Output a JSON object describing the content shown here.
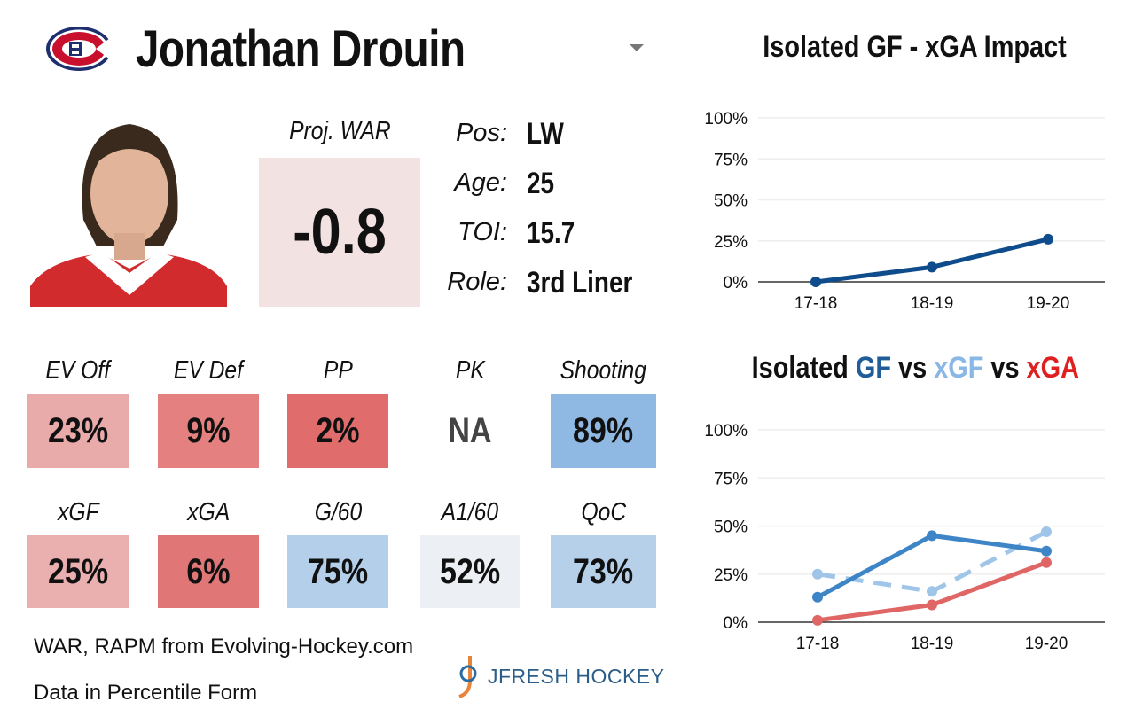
{
  "player": {
    "name": "Jonathan Drouin",
    "team_logo": "canadiens-logo"
  },
  "war": {
    "label": "Proj. WAR",
    "value": "-0.8"
  },
  "info": [
    {
      "label": "Pos:",
      "value": "LW"
    },
    {
      "label": "Age:",
      "value": "25"
    },
    {
      "label": "TOI:",
      "value": "15.7"
    },
    {
      "label": "Role:",
      "value": "3rd Liner"
    }
  ],
  "tiles": [
    {
      "label": "EV Off",
      "value": "23%",
      "color": "#e9aaaa"
    },
    {
      "label": "EV Def",
      "value": "9%",
      "color": "#e48080"
    },
    {
      "label": "PP",
      "value": "2%",
      "color": "#e06c6c"
    },
    {
      "label": "PK",
      "value": "NA",
      "color": "#ffffff"
    },
    {
      "label": "Shooting",
      "value": "89%",
      "color": "#8fb8e2"
    },
    {
      "label": "xGF",
      "value": "25%",
      "color": "#eaafaf"
    },
    {
      "label": "xGA",
      "value": "6%",
      "color": "#e07676"
    },
    {
      "label": "G/60",
      "value": "75%",
      "color": "#b4cfea"
    },
    {
      "label": "A1/60",
      "value": "52%",
      "color": "#eceff3"
    },
    {
      "label": "QoC",
      "value": "73%",
      "color": "#b7d0ea"
    }
  ],
  "footer": {
    "source": "WAR, RAPM from  Evolving-Hockey.com",
    "note": "Data in Percentile Form",
    "brand": "JFRESH HOCKEY"
  },
  "chart_data": [
    {
      "type": "line",
      "title": "Isolated GF - xGA Impact",
      "categories": [
        "17-18",
        "18-19",
        "19-20"
      ],
      "yticks": [
        "0%",
        "25%",
        "50%",
        "75%",
        "100%"
      ],
      "ylim": [
        0,
        100
      ],
      "series": [
        {
          "name": "GF - xGA",
          "values": [
            0,
            9,
            26
          ],
          "color": "#0f4c8c",
          "dashed": false
        }
      ]
    },
    {
      "type": "line",
      "title_parts": [
        {
          "text": "Isolated ",
          "color": "#111111"
        },
        {
          "text": "GF",
          "color": "#1f5c99"
        },
        {
          "text": " vs ",
          "color": "#111111"
        },
        {
          "text": "xGF",
          "color": "#8ab8e6"
        },
        {
          "text": " vs ",
          "color": "#111111"
        },
        {
          "text": "xGA",
          "color": "#e02020"
        }
      ],
      "categories": [
        "17-18",
        "18-19",
        "19-20"
      ],
      "yticks": [
        "0%",
        "25%",
        "50%",
        "75%",
        "100%"
      ],
      "ylim": [
        0,
        100
      ],
      "series": [
        {
          "name": "xGF",
          "values": [
            25,
            16,
            47
          ],
          "color": "#9fc5e8",
          "dashed": true
        },
        {
          "name": "GF",
          "values": [
            13,
            45,
            37
          ],
          "color": "#3d85c6",
          "dashed": false
        },
        {
          "name": "xGA",
          "values": [
            1,
            9,
            31
          ],
          "color": "#e06666",
          "dashed": false
        }
      ]
    }
  ]
}
